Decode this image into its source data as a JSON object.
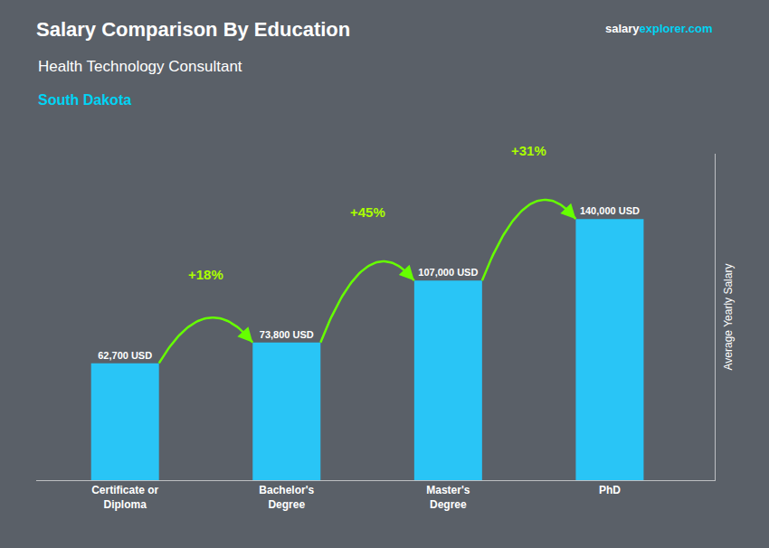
{
  "chart_data": {
    "type": "bar",
    "title": "Salary Comparison By Education",
    "subtitle": "Health Technology Consultant",
    "categories": [
      "Certificate or\nDiploma",
      "Bachelor's\nDegree",
      "Master's\nDegree",
      "PhD"
    ],
    "values": [
      62700,
      73800,
      107000,
      140000
    ],
    "value_labels": [
      "62,700 USD",
      "73,800 USD",
      "107,000 USD",
      "140,000 USD"
    ],
    "data_labels": true,
    "color": "#29c5f6",
    "ylabel": "Average Yearly Salary",
    "ylim": [
      0,
      175000
    ],
    "yticks": [],
    "tick_labels": "x",
    "grid": false,
    "annotations": [
      {
        "text": "South Dakota",
        "color": "#00d4f5"
      },
      {
        "text": "salary",
        "color": "#ffffff"
      },
      {
        "text": "explorer",
        "color": "#00d4f5"
      },
      {
        "text": ".com",
        "color": "#00d4f5"
      },
      {
        "text": "+18%",
        "from": 0,
        "to": 1,
        "color": "#aaff00",
        "line_color": "#66ff00"
      },
      {
        "text": "+45%",
        "from": 1,
        "to": 2,
        "color": "#aaff00",
        "line_color": "#66ff00"
      },
      {
        "text": "+31%",
        "from": 2,
        "to": 3,
        "color": "#aaff00",
        "line_color": "#66ff00"
      }
    ]
  }
}
